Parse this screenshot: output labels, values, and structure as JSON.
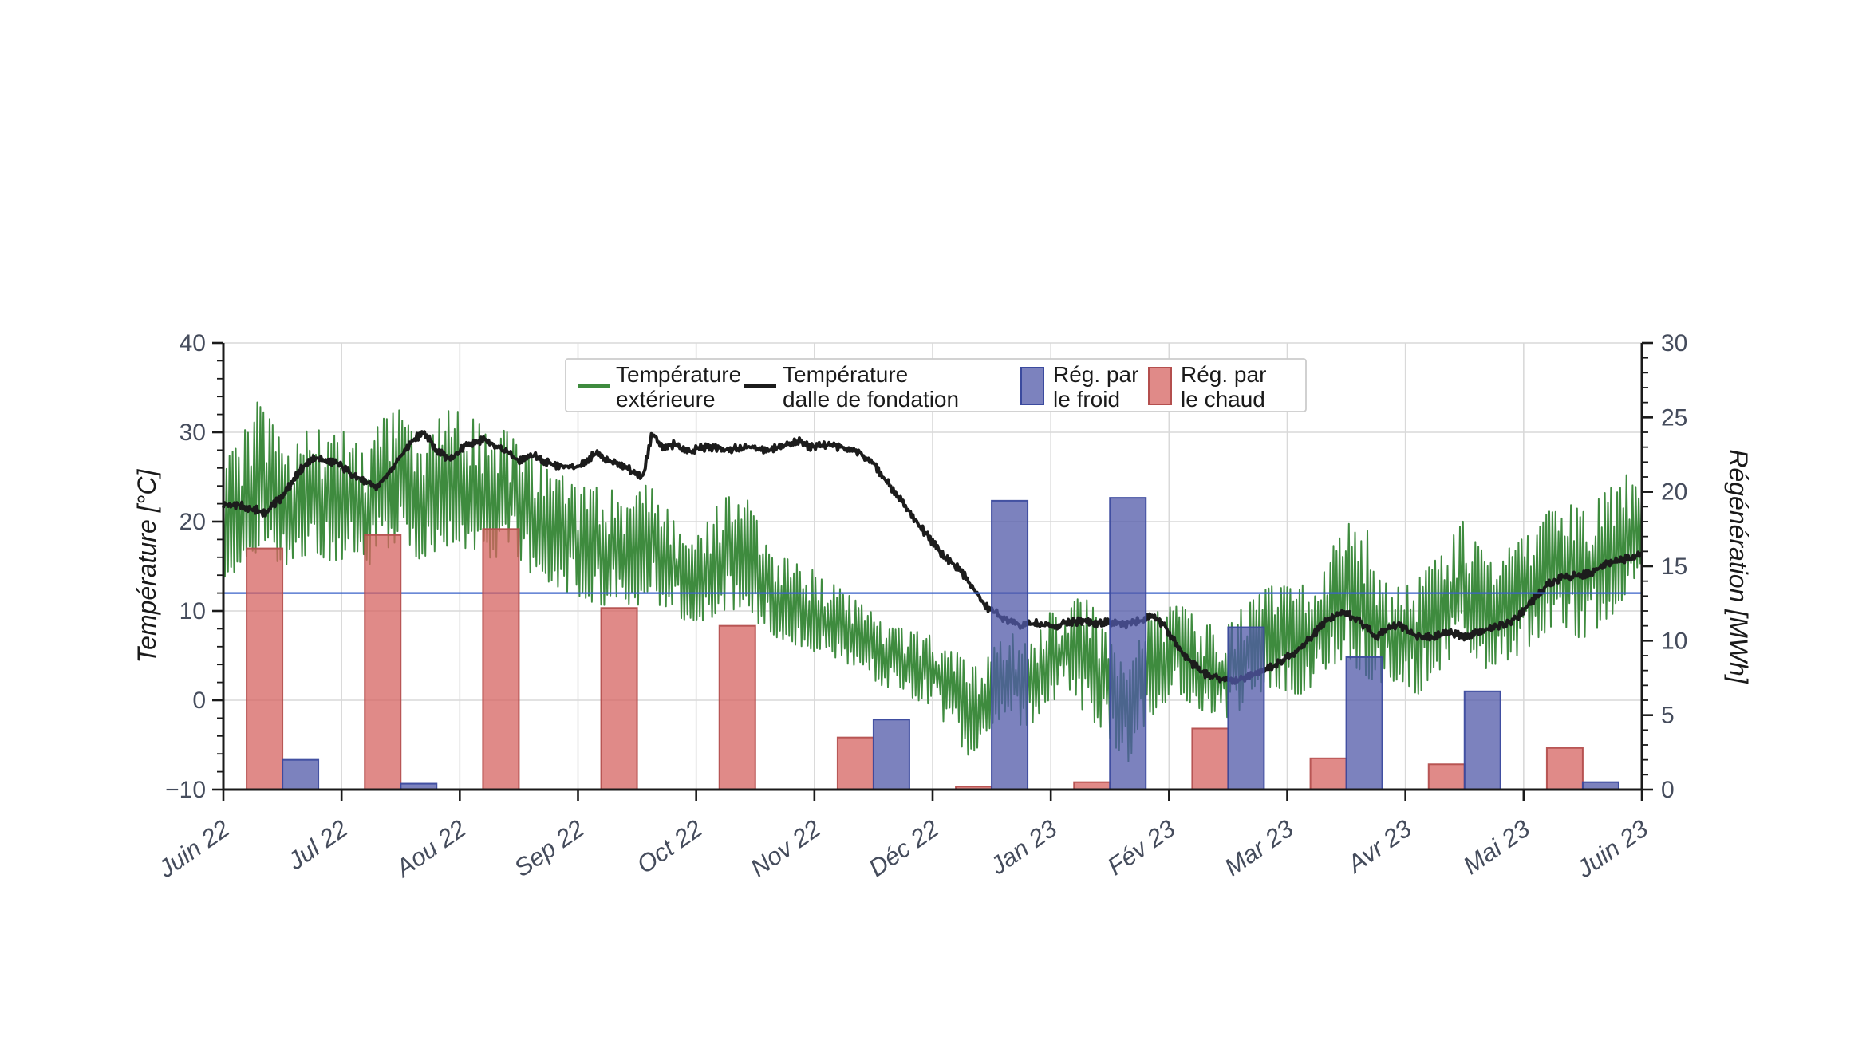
{
  "page": {
    "background": "#ffffff",
    "title": ""
  },
  "chart_data": {
    "type": "mixed",
    "title": "",
    "x_axis": {
      "tick_labels": [
        "Juin 22",
        "Jul 22",
        "Aou 22",
        "Sep 22",
        "Oct 22",
        "Nov 22",
        "Déc 22",
        "Jan 23",
        "Fév 23",
        "Mar 23",
        "Avr 23",
        "Mai 23",
        "Juin 23"
      ],
      "range_months": [
        0,
        12
      ],
      "grid": true
    },
    "y_left": {
      "label": "Température [°C]",
      "min": -10,
      "max": 40,
      "tick_values": [
        40,
        30,
        20,
        10,
        0,
        -10
      ],
      "tick_labels": [
        "40",
        "30",
        "20",
        "10",
        "0",
        "−10"
      ],
      "minor_step": 2,
      "grid_values": [
        40,
        30,
        20,
        10,
        0
      ]
    },
    "y_right": {
      "label": "Régénération [MWh]",
      "min": 0,
      "max": 30,
      "tick_values": [
        30,
        25,
        20,
        15,
        10,
        5,
        0
      ],
      "tick_labels": [
        "30",
        "25",
        "20",
        "15",
        "10",
        "5",
        "0"
      ],
      "minor_step": 1
    },
    "reference_line": {
      "axis": "left",
      "value": 12,
      "color": "#3a62c8"
    },
    "bar_months": [
      "Juin 22",
      "Jul 22",
      "Aou 22",
      "Sep 22",
      "Oct 22",
      "Nov 22",
      "Déc 22",
      "Jan 23",
      "Fév 23",
      "Mar 23",
      "Avr 23",
      "Mai 23"
    ],
    "bar_unit": "MWh",
    "bar_opacity": 0.75,
    "bar_series": [
      {
        "name": "Rég. par le chaud",
        "name_lines": [
          "Rég. par",
          "le chaud"
        ],
        "side": "left",
        "fill": "#d66360",
        "edge": "#b44f4e",
        "values": [
          16.2,
          17.1,
          17.5,
          12.2,
          11.0,
          3.5,
          0.2,
          0.5,
          4.1,
          2.1,
          1.7,
          2.8
        ]
      },
      {
        "name": "Rég. par le froid",
        "name_lines": [
          "Rég. par",
          "le froid"
        ],
        "side": "right",
        "fill": "#5058a8",
        "edge": "#3b4a9e",
        "values": [
          2.0,
          0.4,
          0.0,
          0.0,
          0.0,
          4.7,
          19.4,
          19.6,
          10.9,
          8.9,
          6.6,
          0.5
        ]
      }
    ],
    "line_series": [
      {
        "name": "Température extérieure",
        "name_lines": [
          "Température",
          "extérieure"
        ],
        "color": "#3e8b3e",
        "style": "noisy-band",
        "unit": "°C",
        "band": [
          [
            0,
            13,
            27
          ],
          [
            0.15,
            14,
            30
          ],
          [
            0.3,
            16,
            34.5
          ],
          [
            0.45,
            14,
            31
          ],
          [
            0.6,
            15,
            29
          ],
          [
            0.75,
            16,
            32
          ],
          [
            0.9,
            15,
            30
          ],
          [
            1.05,
            15,
            31
          ],
          [
            1.2,
            14,
            28
          ],
          [
            1.35,
            16,
            33
          ],
          [
            1.5,
            17,
            34.5
          ],
          [
            1.65,
            15,
            30
          ],
          [
            1.8,
            16,
            32
          ],
          [
            1.95,
            17,
            33.5
          ],
          [
            2.1,
            16,
            33
          ],
          [
            2.25,
            15,
            30
          ],
          [
            2.4,
            16,
            31
          ],
          [
            2.55,
            14,
            28
          ],
          [
            2.7,
            13,
            27
          ],
          [
            2.85,
            12,
            26
          ],
          [
            3.0,
            11,
            24
          ],
          [
            3.2,
            10,
            26
          ],
          [
            3.4,
            9,
            22
          ],
          [
            3.6,
            11,
            25
          ],
          [
            3.8,
            9,
            21
          ],
          [
            4.0,
            8,
            19
          ],
          [
            4.2,
            9,
            23
          ],
          [
            4.4,
            10,
            24
          ],
          [
            4.6,
            7,
            18
          ],
          [
            4.8,
            6,
            16
          ],
          [
            5.0,
            5,
            15
          ],
          [
            5.2,
            4,
            13
          ],
          [
            5.4,
            3,
            11
          ],
          [
            5.6,
            1,
            9
          ],
          [
            5.8,
            0,
            8
          ],
          [
            6.0,
            -1,
            8
          ],
          [
            6.2,
            -5,
            6
          ],
          [
            6.35,
            -7.5,
            4
          ],
          [
            6.5,
            -3,
            6
          ],
          [
            6.65,
            -2,
            8
          ],
          [
            6.8,
            -4,
            7
          ],
          [
            6.95,
            -1,
            10
          ],
          [
            7.1,
            0,
            11
          ],
          [
            7.3,
            -2,
            12.5
          ],
          [
            7.5,
            -5,
            7
          ],
          [
            7.65,
            -7.5,
            4
          ],
          [
            7.8,
            -3,
            9
          ],
          [
            7.95,
            -1,
            11
          ],
          [
            8.1,
            0,
            11
          ],
          [
            8.3,
            -2,
            9
          ],
          [
            8.5,
            -3,
            9
          ],
          [
            8.7,
            0,
            12
          ],
          [
            8.9,
            1,
            13.5
          ],
          [
            9.1,
            0,
            13
          ],
          [
            9.3,
            2,
            16
          ],
          [
            9.5,
            4,
            20.5
          ],
          [
            9.65,
            2,
            21
          ],
          [
            9.8,
            1,
            14
          ],
          [
            9.95,
            2,
            13
          ],
          [
            10.1,
            0,
            14
          ],
          [
            10.3,
            3,
            17
          ],
          [
            10.5,
            5,
            21
          ],
          [
            10.7,
            2,
            16
          ],
          [
            10.9,
            4,
            18
          ],
          [
            11.1,
            6,
            20
          ],
          [
            11.3,
            8,
            23
          ],
          [
            11.5,
            6,
            22
          ],
          [
            11.7,
            8,
            24
          ],
          [
            11.85,
            11,
            26
          ],
          [
            12,
            11.5,
            25.5
          ]
        ]
      },
      {
        "name": "Température dalle de fondation",
        "name_lines": [
          "Température",
          "dalle de fondation"
        ],
        "color": "#1c1c1c",
        "style": "wiggly-line",
        "unit": "°C",
        "points": [
          [
            0,
            22
          ],
          [
            0.15,
            21.8
          ],
          [
            0.35,
            21
          ],
          [
            0.5,
            22.8
          ],
          [
            0.65,
            25.8
          ],
          [
            0.78,
            27.2
          ],
          [
            0.95,
            26.6
          ],
          [
            1.1,
            25.2
          ],
          [
            1.3,
            23.9
          ],
          [
            1.45,
            26.3
          ],
          [
            1.6,
            29.2
          ],
          [
            1.7,
            29.9
          ],
          [
            1.82,
            27.8
          ],
          [
            1.92,
            26.9
          ],
          [
            2.05,
            28.5
          ],
          [
            2.2,
            29.2
          ],
          [
            2.35,
            28.2
          ],
          [
            2.5,
            26.8
          ],
          [
            2.62,
            27.4
          ],
          [
            2.8,
            26.2
          ],
          [
            3.0,
            26.1
          ],
          [
            3.15,
            27.6
          ],
          [
            3.35,
            26.3
          ],
          [
            3.55,
            25.1
          ],
          [
            3.63,
            30
          ],
          [
            3.72,
            28.3
          ],
          [
            3.82,
            28.7
          ],
          [
            3.92,
            27.8
          ],
          [
            4.05,
            28.3
          ],
          [
            4.25,
            28.1
          ],
          [
            4.45,
            28.3
          ],
          [
            4.6,
            28
          ],
          [
            4.75,
            28.5
          ],
          [
            4.87,
            29
          ],
          [
            4.97,
            28.3
          ],
          [
            5.1,
            28.6
          ],
          [
            5.25,
            28.3
          ],
          [
            5.38,
            27.8
          ],
          [
            5.5,
            26.5
          ],
          [
            5.65,
            23.8
          ],
          [
            5.8,
            21.2
          ],
          [
            5.95,
            18.5
          ],
          [
            6.1,
            16
          ],
          [
            6.22,
            14.8
          ],
          [
            6.32,
            13
          ],
          [
            6.45,
            10.5
          ],
          [
            6.6,
            9.2
          ],
          [
            6.75,
            8.3
          ],
          [
            6.88,
            8.6
          ],
          [
            7.0,
            8.3
          ],
          [
            7.12,
            8.6
          ],
          [
            7.25,
            8.9
          ],
          [
            7.38,
            8.5
          ],
          [
            7.5,
            8.8
          ],
          [
            7.62,
            8.4
          ],
          [
            7.75,
            8.9
          ],
          [
            7.87,
            9.5
          ],
          [
            7.97,
            8.2
          ],
          [
            8.08,
            5.8
          ],
          [
            8.18,
            4.3
          ],
          [
            8.3,
            3
          ],
          [
            8.45,
            2.4
          ],
          [
            8.6,
            2.3
          ],
          [
            8.75,
            3.2
          ],
          [
            8.9,
            4
          ],
          [
            9.05,
            5.2
          ],
          [
            9.2,
            7
          ],
          [
            9.35,
            9.2
          ],
          [
            9.48,
            9.8
          ],
          [
            9.6,
            9.1
          ],
          [
            9.75,
            7
          ],
          [
            9.85,
            8.1
          ],
          [
            9.95,
            8.5
          ],
          [
            10.05,
            7.4
          ],
          [
            10.2,
            7
          ],
          [
            10.35,
            7.6
          ],
          [
            10.5,
            7.2
          ],
          [
            10.65,
            7.8
          ],
          [
            10.8,
            8.4
          ],
          [
            10.9,
            8.8
          ],
          [
            11.0,
            10
          ],
          [
            11.1,
            11.5
          ],
          [
            11.2,
            13
          ],
          [
            11.35,
            13.8
          ],
          [
            11.5,
            14
          ],
          [
            11.6,
            14.5
          ],
          [
            11.7,
            15.2
          ],
          [
            11.8,
            15.6
          ],
          [
            11.9,
            15.9
          ],
          [
            12,
            16.3
          ]
        ]
      }
    ],
    "legend": {
      "position": "upper-center-inside",
      "border_color": "#cccccc",
      "background": "#ffffff",
      "entries_order": [
        "Température extérieure",
        "Température dalle de fondation",
        "Rég. par le froid",
        "Rég. par le chaud"
      ]
    },
    "style_colors": {
      "grid": "#d9d9d9",
      "spine": "#1a1a1a",
      "tick_label": "#454c5c",
      "axis_title": "#1a1a1a"
    }
  }
}
